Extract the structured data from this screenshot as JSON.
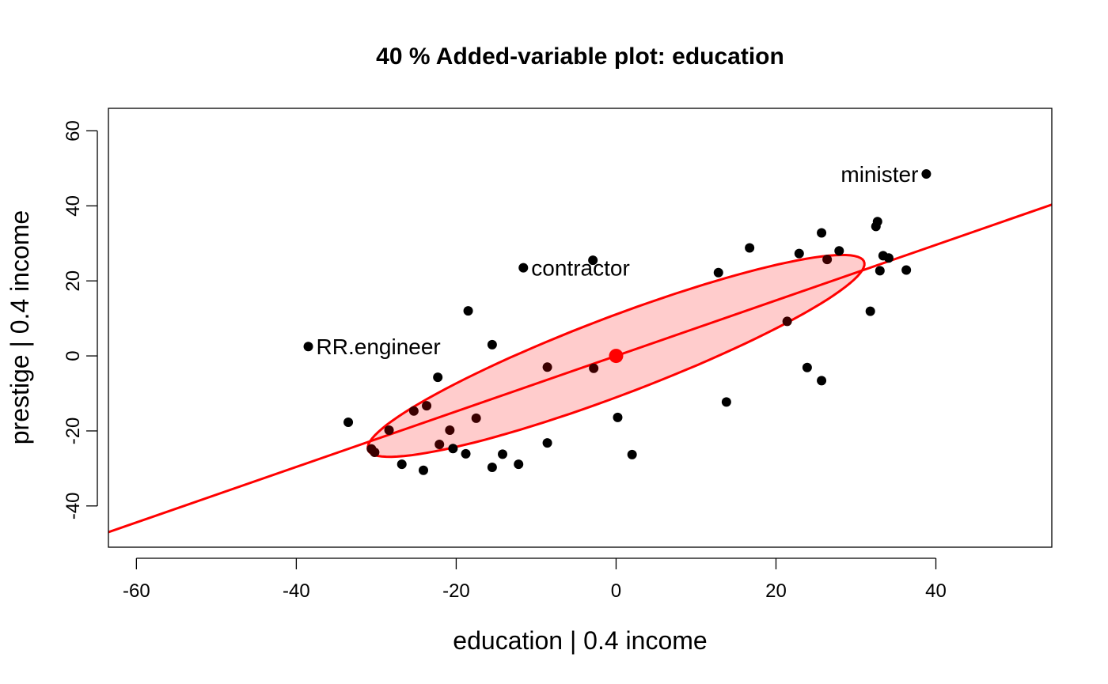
{
  "chart_data": {
    "type": "scatter",
    "title": "40 % Added-variable plot: education",
    "xlabel": "education |  0.4 income",
    "ylabel": "prestige |  0.4 income",
    "xlim": [
      -63.5,
      54.5
    ],
    "ylim": [
      -51,
      66
    ],
    "xticks": [
      -60,
      -40,
      -20,
      0,
      20,
      40
    ],
    "yticks": [
      -40,
      -20,
      0,
      20,
      40,
      60
    ],
    "grid": false,
    "colors": {
      "points": "#000000",
      "points_inside": "#3a0000",
      "line": "#ff0000",
      "ellipse_fill": "#ffcccc",
      "ellipse_stroke": "#ff0000",
      "center": "#ff0000"
    },
    "fit_line": {
      "intercept": 0,
      "slope": 0.74
    },
    "center": [
      0,
      0
    ],
    "ellipse": {
      "cx": 0,
      "cy": 0,
      "a": 40.2,
      "b": 8.55,
      "angle_deg": 40.5
    },
    "points": [
      {
        "x": 38.8,
        "y": 48.5,
        "label": "minister"
      },
      {
        "x": -11.6,
        "y": 23.5,
        "label": "contractor"
      },
      {
        "x": -38.5,
        "y": 2.5,
        "label": "RR.engineer"
      },
      {
        "x": -2.9,
        "y": 25.5
      },
      {
        "x": -18.5,
        "y": 12
      },
      {
        "x": 32.7,
        "y": 35.8
      },
      {
        "x": 32.5,
        "y": 34.5
      },
      {
        "x": 25.7,
        "y": 32.8
      },
      {
        "x": 16.7,
        "y": 28.8
      },
      {
        "x": 22.9,
        "y": 27.3
      },
      {
        "x": 27.9,
        "y": 28
      },
      {
        "x": 26.4,
        "y": 25.7
      },
      {
        "x": 33.4,
        "y": 26.7
      },
      {
        "x": 34.1,
        "y": 26.1
      },
      {
        "x": 33.0,
        "y": 22.7
      },
      {
        "x": 36.3,
        "y": 22.9
      },
      {
        "x": 12.8,
        "y": 22.2
      },
      {
        "x": 31.8,
        "y": 11.9
      },
      {
        "x": 21.4,
        "y": 9.2
      },
      {
        "x": 23.9,
        "y": -3.1
      },
      {
        "x": 25.7,
        "y": -6.6
      },
      {
        "x": 13.8,
        "y": -12.3
      },
      {
        "x": 2.0,
        "y": -26.3
      },
      {
        "x": 0.2,
        "y": -16.4
      },
      {
        "x": -2.8,
        "y": -3.3
      },
      {
        "x": -8.6,
        "y": -3
      },
      {
        "x": -15.5,
        "y": 3
      },
      {
        "x": -22.3,
        "y": -5.7
      },
      {
        "x": -17.5,
        "y": -16.6
      },
      {
        "x": -23.7,
        "y": -13.3
      },
      {
        "x": -25.3,
        "y": -14.7
      },
      {
        "x": -33.5,
        "y": -17.7
      },
      {
        "x": -28.4,
        "y": -19.8
      },
      {
        "x": -20.8,
        "y": -19.8
      },
      {
        "x": -22.1,
        "y": -23.6
      },
      {
        "x": -20.4,
        "y": -24.7
      },
      {
        "x": -18.8,
        "y": -26.1
      },
      {
        "x": -30.6,
        "y": -24.8
      },
      {
        "x": -30.2,
        "y": -25.7
      },
      {
        "x": -14.2,
        "y": -26.2
      },
      {
        "x": -8.6,
        "y": -23.2
      },
      {
        "x": -26.8,
        "y": -28.9
      },
      {
        "x": -24.1,
        "y": -30.5
      },
      {
        "x": -15.5,
        "y": -29.7
      },
      {
        "x": -12.2,
        "y": -28.9
      }
    ]
  }
}
